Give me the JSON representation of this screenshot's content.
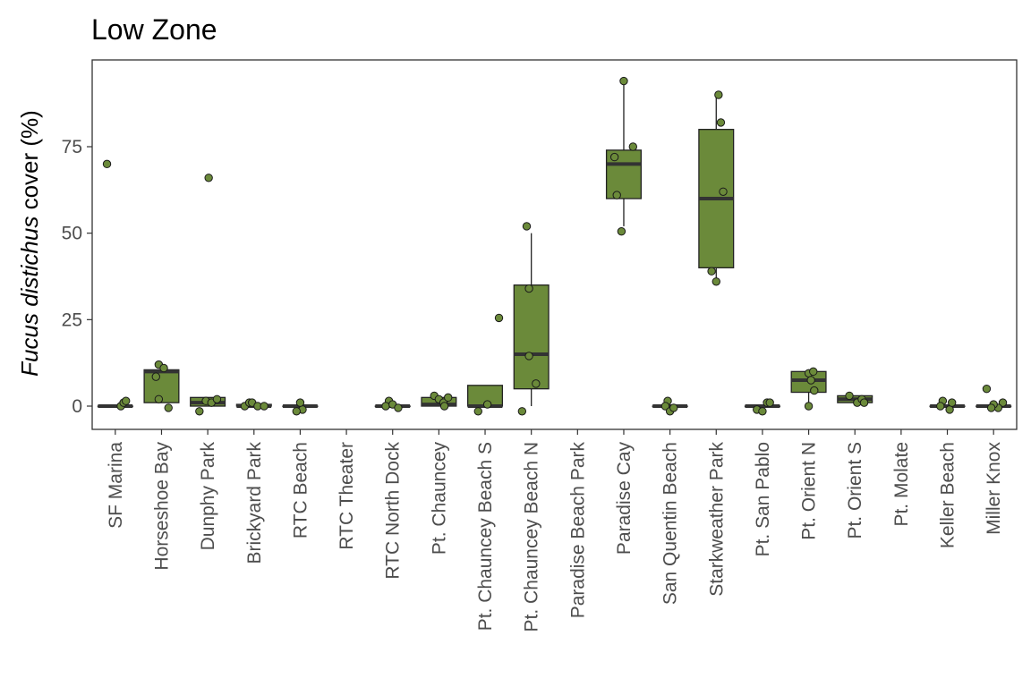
{
  "chart_data": {
    "type": "boxplot",
    "title": "Low Zone",
    "ylabel_italic": "Fucus distichus",
    "ylabel_rest": " cover (%)",
    "xlabel": "",
    "ylim": [
      -7,
      100
    ],
    "yticks": [
      0,
      25,
      50,
      75
    ],
    "grid": false,
    "legend": "none",
    "colors": {
      "box_fill": "#6b8a3a",
      "point_fill": "#6b8a3a",
      "outline": "#222222",
      "median": "#333333",
      "panel_border": "#333333"
    },
    "categories": [
      "SF Marina",
      "Horseshoe Bay",
      "Dunphy Park",
      "Brickyard Park",
      "RTC Beach",
      "RTC Theater",
      "RTC North Dock",
      "Pt. Chauncey",
      "Pt. Chauncey Beach S",
      "Pt. Chauncey Beach N",
      "Paradise Beach Park",
      "Paradise Cay",
      "San Quentin Beach",
      "Starkweather Park",
      "Pt. San Pablo",
      "Pt. Orient N",
      "Pt. Orient S",
      "Pt. Molate",
      "Keller Beach",
      "Miller Knox"
    ],
    "boxes": [
      {
        "q1": 0,
        "median": 0,
        "q3": 0,
        "whisker_low": 0,
        "whisker_high": 0
      },
      {
        "q1": 1,
        "median": 10,
        "q3": 10.5,
        "whisker_low": 1,
        "whisker_high": 10.5
      },
      {
        "q1": 0,
        "median": 1,
        "q3": 2.5,
        "whisker_low": 0,
        "whisker_high": 2.5
      },
      {
        "q1": 0,
        "median": 0,
        "q3": 0.5,
        "whisker_low": 0,
        "whisker_high": 0.5
      },
      {
        "q1": 0,
        "median": 0,
        "q3": 0,
        "whisker_low": 0,
        "whisker_high": 0
      },
      null,
      {
        "q1": 0,
        "median": 0,
        "q3": 0,
        "whisker_low": 0,
        "whisker_high": 0
      },
      {
        "q1": 0,
        "median": 0.5,
        "q3": 2.5,
        "whisker_low": 0,
        "whisker_high": 2.5
      },
      {
        "q1": 0,
        "median": 0,
        "q3": 6,
        "whisker_low": 0,
        "whisker_high": 6
      },
      {
        "q1": 5,
        "median": 15,
        "q3": 35,
        "whisker_low": 0,
        "whisker_high": 50
      },
      null,
      {
        "q1": 60,
        "median": 70,
        "q3": 74,
        "whisker_low": 52,
        "whisker_high": 94
      },
      {
        "q1": 0,
        "median": 0,
        "q3": 0,
        "whisker_low": 0,
        "whisker_high": 0
      },
      {
        "q1": 40,
        "median": 60,
        "q3": 80,
        "whisker_low": 36,
        "whisker_high": 90
      },
      {
        "q1": 0,
        "median": 0,
        "q3": 0,
        "whisker_low": 0,
        "whisker_high": 0
      },
      {
        "q1": 4,
        "median": 7.5,
        "q3": 10,
        "whisker_low": 0,
        "whisker_high": 10
      },
      {
        "q1": 1,
        "median": 2,
        "q3": 3,
        "whisker_low": 1,
        "whisker_high": 3
      },
      null,
      {
        "q1": 0,
        "median": 0,
        "q3": 0,
        "whisker_low": 0,
        "whisker_high": 0
      },
      {
        "q1": 0,
        "median": 0,
        "q3": 0,
        "whisker_low": 0,
        "whisker_high": 0
      }
    ],
    "points": [
      [
        70,
        0,
        1,
        1.5
      ],
      [
        12,
        8.5,
        11,
        2,
        -0.5
      ],
      [
        66,
        -1.5,
        1.5,
        1,
        2
      ],
      [
        0,
        1,
        1,
        0,
        0
      ],
      [
        -1,
        1,
        -1.5
      ],
      [],
      [
        1.5,
        0,
        0.5,
        -0.5
      ],
      [
        3,
        2,
        1,
        0,
        2.5
      ],
      [
        25.5,
        0.5,
        -1.5
      ],
      [
        52,
        34,
        14.5,
        6.5,
        -1.5
      ],
      [],
      [
        94,
        75,
        72,
        61,
        50.5
      ],
      [
        1.5,
        0,
        -1.5,
        -0.5
      ],
      [
        90,
        82,
        62,
        39,
        36
      ],
      [
        1,
        -1,
        -1.5,
        1
      ],
      [
        9.5,
        10,
        7.5,
        4.5,
        0
      ],
      [
        3,
        1,
        2,
        1
      ],
      [],
      [
        1.5,
        0,
        -1,
        1
      ],
      [
        5,
        1,
        -0.5,
        0.5,
        -0.5
      ]
    ],
    "jitter": [
      [
        -0.18,
        0.12,
        0.18,
        0.23
      ],
      [
        -0.06,
        -0.12,
        0.05,
        -0.06,
        0.15
      ],
      [
        0.02,
        -0.18,
        -0.04,
        0.08,
        0.2
      ],
      [
        -0.2,
        -0.1,
        -0.04,
        0.08,
        0.22
      ],
      [
        0.05,
        0.0,
        -0.08
      ],
      [],
      [
        -0.08,
        -0.15,
        0.0,
        0.12
      ],
      [
        -0.1,
        0.0,
        0.1,
        0.12,
        0.2
      ],
      [
        0.3,
        0.05,
        -0.15
      ],
      [
        -0.1,
        -0.05,
        -0.05,
        0.1,
        -0.2
      ],
      [],
      [
        0.0,
        0.2,
        -0.2,
        -0.15,
        -0.05
      ],
      [
        -0.05,
        -0.1,
        0.0,
        0.08
      ],
      [
        0.05,
        0.1,
        0.15,
        -0.1,
        0.0
      ],
      [
        0.1,
        -0.12,
        0.0,
        0.16
      ],
      [
        0.0,
        0.1,
        0.05,
        0.12,
        0.0
      ],
      [
        -0.12,
        0.05,
        0.15,
        0.2
      ],
      [],
      [
        -0.1,
        -0.15,
        0.05,
        0.1
      ],
      [
        -0.15,
        0.2,
        0.1,
        0.0,
        -0.05
      ]
    ]
  }
}
